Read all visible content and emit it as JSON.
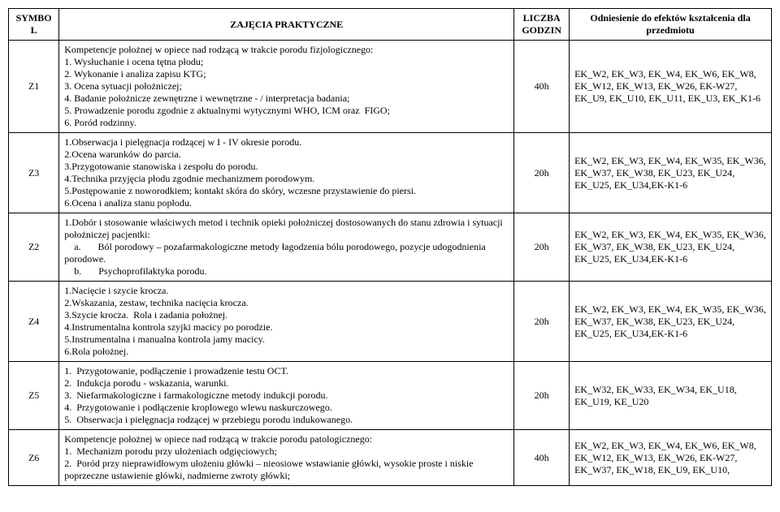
{
  "headers": {
    "symbol": "SYMBOL",
    "content": "ZAJĘCIA PRAKTYCZNE",
    "hours": "LICZBA GODZIN",
    "effects": "Odniesienie do efektów kształcenia dla przedmiotu"
  },
  "rows": [
    {
      "symbol": "Z1",
      "content": "Kompetencje położnej w opiece nad rodzącą w trakcie porodu fizjologicznego:\n1. Wysłuchanie i ocena tętna płodu;\n2. Wykonanie i analiza zapisu KTG;\n3. Ocena sytuacji położniczej;\n4. Badanie położnicze zewnętrzne i wewnętrzne - / interpretacja badania;\n5. Prowadzenie porodu zgodnie z aktualnymi wytycznymi WHO, ICM oraz  FIGO;\n6. Poród rodzinny.",
      "hours": "40h",
      "effects": "EK_W2, EK_W3, EK_W4, EK_W6, EK_W8, EK_W12, EK_W13, EK_W26, EK-W27, EK_U9, EK_U10, EK_U11, EK_U3, EK_K1-6"
    },
    {
      "symbol": "Z3",
      "content": "1.Obserwacja i pielęgnacja rodzącej w I - IV okresie porodu.\n2.Ocena warunków do parcia.\n3.Przygotowanie stanowiska i zespołu do porodu.\n4.Technika przyjęcia płodu zgodnie mechanizmem porodowym.\n5.Postępowanie z noworodkiem; kontakt skóra do skóry, wczesne przystawienie do piersi.\n6.Ocena i analiza stanu popłodu.",
      "hours": "20h",
      "effects": "EK_W2, EK_W3, EK_W4, EK_W35, EK_W36, EK_W37, EK_W38, EK_U23, EK_U24, EK_U25, EK_U34,EK-K1-6"
    },
    {
      "symbol": "Z2",
      "content": "1.Dobór i stosowanie właściwych metod i technik opieki położniczej dostosowanych do stanu zdrowia i sytuacji położniczej pacjentki:\n    a.       Ból porodowy – pozafarmakologiczne metody łagodzenia bólu porodowego, pozycje udogodnienia porodowe.\n    b.       Psychoprofilaktyka porodu.",
      "hours": "20h",
      "effects": "EK_W2, EK_W3, EK_W4, EK_W35, EK_W36, EK_W37, EK_W38, EK_U23, EK_U24, EK_U25, EK_U34,EK-K1-6"
    },
    {
      "symbol": "Z4",
      "content": "1.Nacięcie i szycie krocza.\n2.Wskazania, zestaw, technika nacięcia krocza.\n3.Szycie krocza.  Rola i zadania położnej.\n4.Instrumentalna kontrola szyjki macicy po porodzie.\n5.Instrumentalna i manualna kontrola jamy macicy.\n6.Rola położnej.",
      "hours": "20h",
      "effects": "EK_W2, EK_W3, EK_W4, EK_W35, EK_W36, EK_W37, EK_W38, EK_U23, EK_U24, EK_U25, EK_U34,EK-K1-6"
    },
    {
      "symbol": "Z5",
      "content": "1.  Przygotowanie, podłączenie i prowadzenie testu OCT.\n2.  Indukcja porodu - wskazania, warunki.\n3.  Niefarmakologiczne i farmakologiczne metody indukcji porodu.\n4.  Przygotowanie i podłączenie kroplowego wlewu naskurczowego.\n5.  Obserwacja i pielęgnacja rodzącej w przebiegu porodu indukowanego.",
      "hours": "20h",
      "effects": "EK_W32, EK_W33, EK_W34, EK_U18, EK_U19, KE_U20"
    },
    {
      "symbol": "Z6",
      "content": "Kompetencje położnej w opiece nad rodzącą w trakcie porodu patologicznego:\n1.  Mechanizm porodu przy ułożeniach odgięciowych;\n2.  Poród przy nieprawidłowym ułożeniu główki – nieosiowe wstawianie główki, wysokie proste i niskie poprzeczne ustawienie główki, nadmierne zwroty główki;",
      "hours": "40h",
      "effects": "EK_W2, EK_W3, EK_W4, EK_W6, EK_W8, EK_W12, EK_W13, EK_W26, EK-W27, EK_W37, EK_W18, EK_U9, EK_U10,"
    }
  ]
}
